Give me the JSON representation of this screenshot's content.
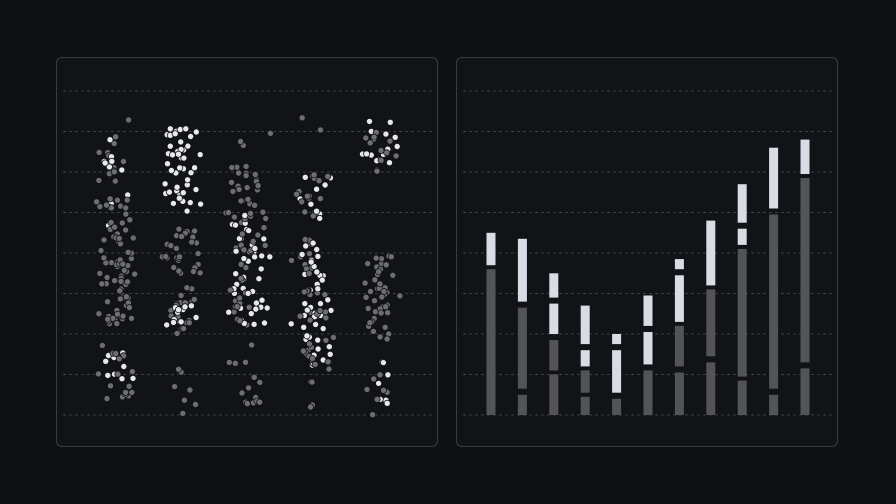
{
  "colors": {
    "background": "#101114",
    "panel_border": "#3a3b3f",
    "grid": "#3b3d42",
    "point_dark": "#6d6e73",
    "point_light": "#e6e8ee",
    "bar_dark": "#535459",
    "bar_light": "#d9dce4"
  },
  "chart_data": [
    {
      "type": "scatter",
      "ylim": [
        0,
        8
      ],
      "grid": true,
      "grid_lines": 8,
      "columns": [
        {
          "x": 1,
          "clusters": [
            {
              "y": [
                1.0,
                7.0
              ],
              "n": 10,
              "shade": "mixed"
            },
            {
              "y": [
                5.6,
                7.4
              ],
              "n": 12,
              "shade": "dark"
            },
            {
              "y": [
                2.2,
                5.4
              ],
              "n": 75,
              "shade": "dark"
            },
            {
              "y": [
                0.8,
                1.6
              ],
              "n": 8,
              "shade": "light"
            },
            {
              "y": [
                6.0,
                6.8
              ],
              "n": 8,
              "shade": "light"
            },
            {
              "y": [
                0.2,
                1.8
              ],
              "n": 16,
              "shade": "dark"
            }
          ]
        },
        {
          "x": 2,
          "clusters": [
            {
              "y": [
                6.2,
                7.1
              ],
              "n": 22,
              "shade": "light"
            },
            {
              "y": [
                5.0,
                6.2
              ],
              "n": 22,
              "shade": "light"
            },
            {
              "y": [
                2.0,
                4.6
              ],
              "n": 55,
              "shade": "dark"
            },
            {
              "y": [
                2.2,
                2.7
              ],
              "n": 12,
              "shade": "light"
            },
            {
              "y": [
                0.0,
                1.3
              ],
              "n": 7,
              "shade": "dark"
            }
          ]
        },
        {
          "x": 3,
          "clusters": [
            {
              "y": [
                4.6,
                6.2
              ],
              "n": 25,
              "shade": "dark"
            },
            {
              "y": [
                2.2,
                5.0
              ],
              "n": 80,
              "shade": "mixed"
            },
            {
              "y": [
                0.1,
                1.8
              ],
              "n": 14,
              "shade": "dark"
            },
            {
              "y": [
                6.6,
                7.0
              ],
              "n": 3,
              "shade": "dark"
            }
          ]
        },
        {
          "x": 4,
          "clusters": [
            {
              "y": [
                4.8,
                6.0
              ],
              "n": 25,
              "shade": "mixed"
            },
            {
              "y": [
                1.2,
                4.4
              ],
              "n": 80,
              "shade": "mixed"
            },
            {
              "y": [
                0.0,
                1.8
              ],
              "n": 8,
              "shade": "dark"
            },
            {
              "y": [
                7.0,
                7.4
              ],
              "n": 2,
              "shade": "dark"
            }
          ]
        },
        {
          "x": 5,
          "clusters": [
            {
              "y": [
                6.0,
                7.4
              ],
              "n": 16,
              "shade": "light"
            },
            {
              "y": [
                6.0,
                7.0
              ],
              "n": 10,
              "shade": "dark"
            },
            {
              "y": [
                1.8,
                4.0
              ],
              "n": 45,
              "shade": "dark"
            },
            {
              "y": [
                0.0,
                1.5
              ],
              "n": 14,
              "shade": "mixed"
            }
          ]
        }
      ]
    },
    {
      "type": "bar",
      "stacked": true,
      "ylim": [
        0,
        8
      ],
      "grid": true,
      "grid_lines": 8,
      "bars": [
        {
          "segments": [
            {
              "from": 0.0,
              "to": 3.6,
              "shade": "dark"
            },
            {
              "from": 3.7,
              "to": 4.5,
              "shade": "light"
            }
          ]
        },
        {
          "segments": [
            {
              "from": 0.0,
              "to": 0.5,
              "shade": "dark"
            },
            {
              "from": 0.65,
              "to": 2.65,
              "shade": "dark"
            },
            {
              "from": 2.8,
              "to": 4.35,
              "shade": "light"
            }
          ]
        },
        {
          "segments": [
            {
              "from": 0.0,
              "to": 1.0,
              "shade": "dark"
            },
            {
              "from": 1.1,
              "to": 1.85,
              "shade": "dark"
            },
            {
              "from": 2.0,
              "to": 2.75,
              "shade": "light"
            },
            {
              "from": 2.9,
              "to": 3.5,
              "shade": "light"
            }
          ]
        },
        {
          "segments": [
            {
              "from": 0.0,
              "to": 0.45,
              "shade": "dark"
            },
            {
              "from": 0.55,
              "to": 1.1,
              "shade": "dark"
            },
            {
              "from": 1.2,
              "to": 1.6,
              "shade": "light"
            },
            {
              "from": 1.75,
              "to": 2.7,
              "shade": "light"
            }
          ]
        },
        {
          "segments": [
            {
              "from": 0.0,
              "to": 0.4,
              "shade": "dark"
            },
            {
              "from": 0.55,
              "to": 1.6,
              "shade": "light"
            },
            {
              "from": 1.75,
              "to": 2.0,
              "shade": "light"
            }
          ]
        },
        {
          "segments": [
            {
              "from": 0.0,
              "to": 1.1,
              "shade": "dark"
            },
            {
              "from": 1.25,
              "to": 2.05,
              "shade": "light"
            },
            {
              "from": 2.2,
              "to": 2.95,
              "shade": "light"
            }
          ]
        },
        {
          "segments": [
            {
              "from": 0.0,
              "to": 1.05,
              "shade": "dark"
            },
            {
              "from": 1.2,
              "to": 2.2,
              "shade": "dark"
            },
            {
              "from": 2.3,
              "to": 3.45,
              "shade": "light"
            },
            {
              "from": 3.6,
              "to": 3.85,
              "shade": "light"
            }
          ]
        },
        {
          "segments": [
            {
              "from": 0.0,
              "to": 1.3,
              "shade": "dark"
            },
            {
              "from": 1.45,
              "to": 3.1,
              "shade": "dark"
            },
            {
              "from": 3.2,
              "to": 4.8,
              "shade": "light"
            }
          ]
        },
        {
          "segments": [
            {
              "from": 0.0,
              "to": 0.85,
              "shade": "dark"
            },
            {
              "from": 0.95,
              "to": 4.1,
              "shade": "dark"
            },
            {
              "from": 4.2,
              "to": 4.6,
              "shade": "light"
            },
            {
              "from": 4.75,
              "to": 5.7,
              "shade": "light"
            }
          ]
        },
        {
          "segments": [
            {
              "from": 0.0,
              "to": 0.5,
              "shade": "dark"
            },
            {
              "from": 0.65,
              "to": 4.95,
              "shade": "dark"
            },
            {
              "from": 5.1,
              "to": 6.6,
              "shade": "light"
            }
          ]
        },
        {
          "segments": [
            {
              "from": 0.0,
              "to": 1.15,
              "shade": "dark"
            },
            {
              "from": 1.3,
              "to": 5.85,
              "shade": "dark"
            },
            {
              "from": 5.95,
              "to": 6.8,
              "shade": "light"
            }
          ]
        }
      ]
    }
  ]
}
